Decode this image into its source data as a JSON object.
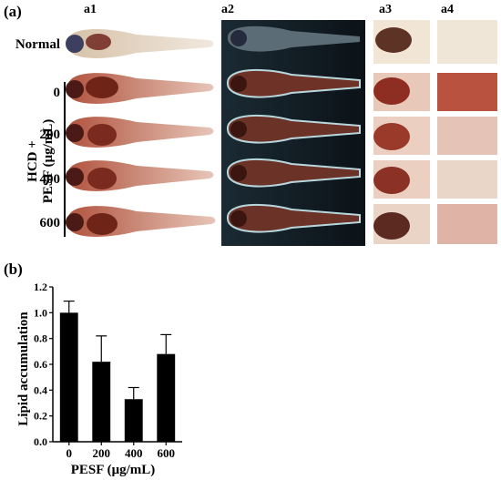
{
  "figure": {
    "panel_a_label": "(a)",
    "panel_b_label": "(b)",
    "columns": [
      "a1",
      "a2",
      "a3",
      "a4"
    ],
    "normal_label": "Normal",
    "group_label_line1": "HCD +",
    "group_label_line2": "PESF (μg/mL)",
    "doses": [
      "0",
      "200",
      "400",
      "600"
    ]
  },
  "chart_data": {
    "type": "bar",
    "categories": [
      "0",
      "200",
      "400",
      "600"
    ],
    "values": [
      1.0,
      0.62,
      0.33,
      0.68
    ],
    "errors": [
      0.09,
      0.2,
      0.09,
      0.15
    ],
    "xlabel": "PESF (μg/mL)",
    "ylabel": "Lipid accumulation",
    "ylim": [
      0.0,
      1.2
    ],
    "yticks": [
      "0.0",
      "0.2",
      "0.4",
      "0.6",
      "0.8",
      "1.0",
      "1.2"
    ],
    "bar_color": "#000000"
  }
}
